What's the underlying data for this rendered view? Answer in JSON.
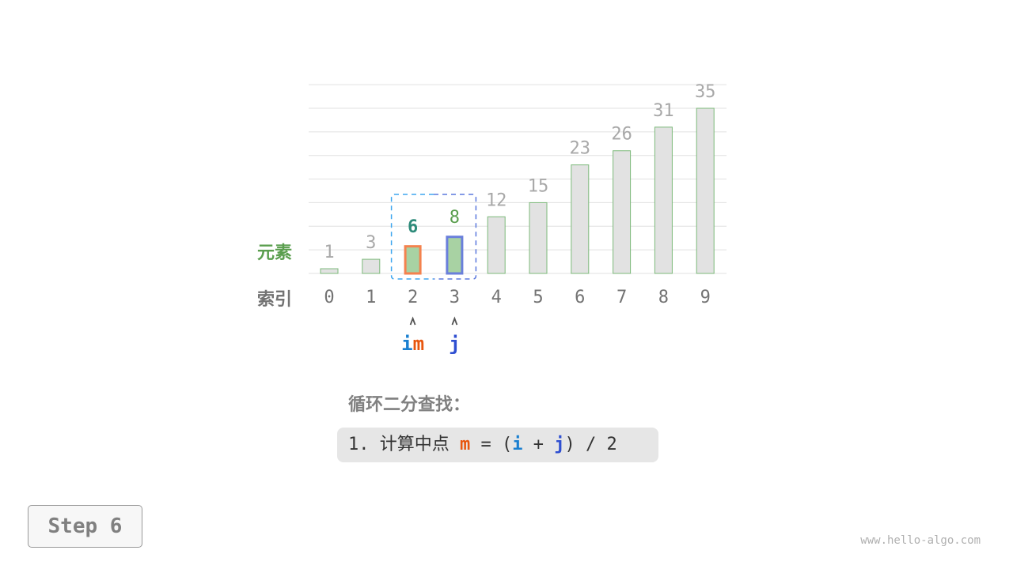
{
  "chart_data": {
    "type": "bar",
    "categories": [
      "0",
      "1",
      "2",
      "3",
      "4",
      "5",
      "6",
      "7",
      "8",
      "9"
    ],
    "values": [
      1,
      3,
      6,
      8,
      12,
      15,
      23,
      26,
      31,
      35
    ],
    "ylim": [
      0,
      40
    ],
    "grid": true,
    "row_labels": {
      "value": "元素",
      "index": "索引"
    },
    "highlight": [
      {
        "index": 2,
        "stroke": "#f4824e",
        "label_color": "#2e8b7a"
      },
      {
        "index": 3,
        "stroke": "#6a7fdb",
        "label_color": "#5a9e4e"
      }
    ],
    "pointers": [
      {
        "index": 2,
        "labels": [
          {
            "text": "i",
            "color": "#1a7fd0"
          },
          {
            "text": "m",
            "color": "#e8560e"
          }
        ]
      },
      {
        "index": 3,
        "labels": [
          {
            "text": "j",
            "color": "#2f4fd1"
          }
        ]
      }
    ],
    "range": [
      2,
      3
    ],
    "range_colors": [
      "#3ea6ef",
      "#5b78dd"
    ]
  },
  "colors": {
    "bar_fill": "#e2e2e2",
    "bar_stroke": "#7cb97a",
    "active_fill": "#a8d2a3",
    "value_text": "#a8a8a8",
    "index_text": "#737373",
    "value_label": "#5a9e4e"
  },
  "title": "循环二分查找：",
  "formula": {
    "prefix": "1. 计算中点 ",
    "m": "m",
    "eq": " = (",
    "i": "i",
    "plus": " + ",
    "j": "j",
    "suffix": ") / 2"
  },
  "step": "Step 6",
  "watermark": "www.hello-algo.com"
}
